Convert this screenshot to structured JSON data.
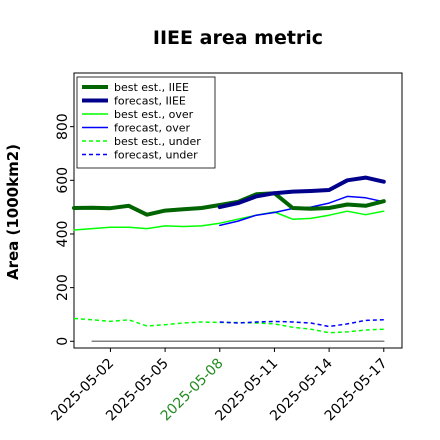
{
  "chart_data": {
    "type": "line",
    "title": "IIEE area metric",
    "ylabel": "Area (1000km2)",
    "xlabel": "",
    "ylim": [
      -25,
      1000
    ],
    "yticks": [
      0,
      200,
      400,
      600,
      800
    ],
    "xticks": [
      "2025-05-02",
      "2025-05-05",
      "2025-05-08",
      "2025-05-11",
      "2025-05-14",
      "2025-05-17"
    ],
    "highlight_tick": "2025-05-08",
    "highlight_color": "#228b22",
    "legend_position": "upper-left",
    "grid": false,
    "x": [
      "2025-04-30",
      "2025-05-01",
      "2025-05-02",
      "2025-05-03",
      "2025-05-04",
      "2025-05-05",
      "2025-05-06",
      "2025-05-07",
      "2025-05-08",
      "2025-05-09",
      "2025-05-10",
      "2025-05-11",
      "2025-05-12",
      "2025-05-13",
      "2025-05-14",
      "2025-05-15",
      "2025-05-16",
      "2025-05-17"
    ],
    "series": [
      {
        "name": "best est., IIEE",
        "color": "#006400",
        "style": "solid",
        "width": 4,
        "x": [
          "2025-04-30",
          "2025-05-01",
          "2025-05-02",
          "2025-05-03",
          "2025-05-04",
          "2025-05-05",
          "2025-05-06",
          "2025-05-07",
          "2025-05-08",
          "2025-05-09",
          "2025-05-10",
          "2025-05-11",
          "2025-05-12",
          "2025-05-13",
          "2025-05-14",
          "2025-05-15",
          "2025-05-16",
          "2025-05-17"
        ],
        "values": [
          497,
          498,
          496,
          505,
          472,
          487,
          492,
          497,
          508,
          520,
          548,
          552,
          497,
          494,
          497,
          510,
          505,
          522
        ]
      },
      {
        "name": "forecast, IIEE",
        "color": "#00008b",
        "style": "solid",
        "width": 4,
        "x": [
          "2025-05-08",
          "2025-05-09",
          "2025-05-10",
          "2025-05-11",
          "2025-05-12",
          "2025-05-13",
          "2025-05-14",
          "2025-05-15",
          "2025-05-16",
          "2025-05-17"
        ],
        "values": [
          500,
          515,
          540,
          552,
          558,
          560,
          564,
          600,
          610,
          595
        ]
      },
      {
        "name": "best est., over",
        "color": "#00ff00",
        "style": "solid",
        "width": 1.5,
        "x": [
          "2025-04-30",
          "2025-05-01",
          "2025-05-02",
          "2025-05-03",
          "2025-05-04",
          "2025-05-05",
          "2025-05-06",
          "2025-05-07",
          "2025-05-08",
          "2025-05-09",
          "2025-05-10",
          "2025-05-11",
          "2025-05-12",
          "2025-05-13",
          "2025-05-14",
          "2025-05-15",
          "2025-05-16",
          "2025-05-17"
        ],
        "values": [
          415,
          420,
          425,
          425,
          420,
          430,
          428,
          430,
          440,
          455,
          470,
          482,
          455,
          458,
          470,
          485,
          472,
          485
        ]
      },
      {
        "name": "forecast, over",
        "color": "#0000ff",
        "style": "solid",
        "width": 1.5,
        "x": [
          "2025-05-08",
          "2025-05-09",
          "2025-05-10",
          "2025-05-11",
          "2025-05-12",
          "2025-05-13",
          "2025-05-14",
          "2025-05-15",
          "2025-05-16",
          "2025-05-17"
        ],
        "values": [
          432,
          448,
          470,
          480,
          495,
          500,
          515,
          540,
          535,
          520
        ]
      },
      {
        "name": "best est., under",
        "color": "#00ff00",
        "style": "dashed",
        "width": 1.5,
        "x": [
          "2025-04-30",
          "2025-05-01",
          "2025-05-02",
          "2025-05-03",
          "2025-05-04",
          "2025-05-05",
          "2025-05-06",
          "2025-05-07",
          "2025-05-08",
          "2025-05-09",
          "2025-05-10",
          "2025-05-11",
          "2025-05-12",
          "2025-05-13",
          "2025-05-14",
          "2025-05-15",
          "2025-05-16",
          "2025-05-17"
        ],
        "values": [
          85,
          80,
          74,
          80,
          57,
          62,
          68,
          72,
          70,
          70,
          68,
          65,
          52,
          45,
          32,
          35,
          42,
          45
        ]
      },
      {
        "name": "forecast, under",
        "color": "#0000ff",
        "style": "dashed",
        "width": 1.5,
        "x": [
          "2025-05-08",
          "2025-05-09",
          "2025-05-10",
          "2025-05-11",
          "2025-05-12",
          "2025-05-13",
          "2025-05-14",
          "2025-05-15",
          "2025-05-16",
          "2025-05-17"
        ],
        "values": [
          72,
          68,
          72,
          74,
          72,
          68,
          55,
          65,
          78,
          80
        ]
      },
      {
        "name": "",
        "color": "#808080",
        "style": "solid",
        "width": 1.5,
        "x": [
          "2025-05-01",
          "2025-05-17"
        ],
        "values": [
          0,
          0
        ]
      }
    ]
  }
}
